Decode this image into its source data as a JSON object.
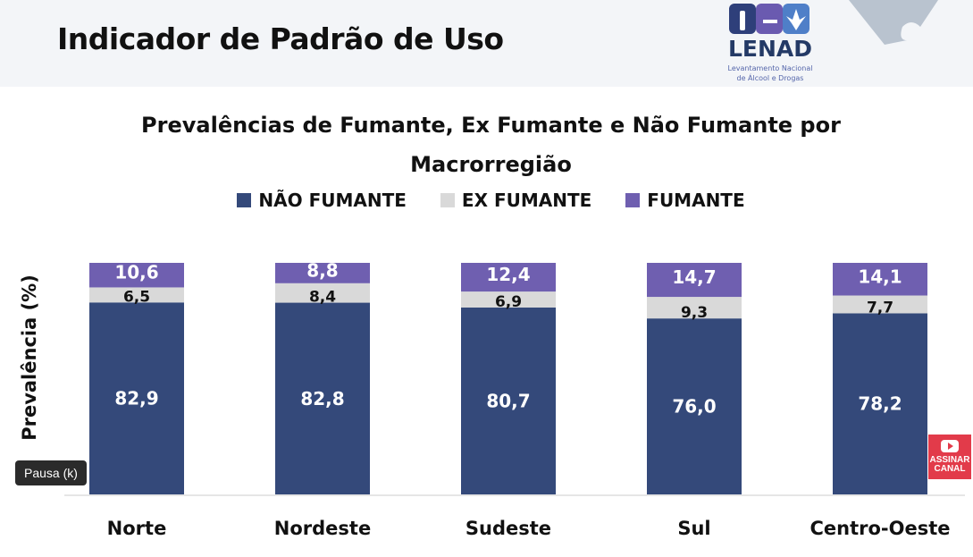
{
  "header": {
    "title": "Indicador de Padrão de Uso",
    "logo_name": "LENAD",
    "logo_subtitle": "Levantamento Nacional de Álcool e Drogas"
  },
  "player": {
    "pause_tooltip": "Pausa (k)",
    "subscribe_label": "ASSINAR CANAL"
  },
  "colors": {
    "nao_fumante": "#34497a",
    "ex_fumante": "#d9d9d9",
    "fumante": "#6f5fb0"
  },
  "chart_data": {
    "type": "bar",
    "stacked": true,
    "title_line1": "Prevalências de Fumante, Ex Fumante e Não Fumante  por",
    "title_line2": "Macrorregião",
    "ylabel": "Prevalência (%)",
    "xlabel": "",
    "ylim": [
      0,
      100
    ],
    "legend_position": "top",
    "categories": [
      "Norte",
      "Nordeste",
      "Sudeste",
      "Sul",
      "Centro-Oeste"
    ],
    "series": [
      {
        "name": "NÃO FUMANTE",
        "values": [
          82.9,
          82.8,
          80.7,
          76.0,
          78.2
        ],
        "labels": [
          "82,9",
          "82,8",
          "80,7",
          "76,0",
          "78,2"
        ]
      },
      {
        "name": "EX FUMANTE",
        "values": [
          6.5,
          8.4,
          6.9,
          9.3,
          7.7
        ],
        "labels": [
          "6,5",
          "8,4",
          "6,9",
          "9,3",
          "7,7"
        ]
      },
      {
        "name": "FUMANTE",
        "values": [
          10.6,
          8.8,
          12.4,
          14.7,
          14.1
        ],
        "labels": [
          "10,6",
          "8,8",
          "12,4",
          "14,7",
          "14,1"
        ]
      }
    ]
  }
}
